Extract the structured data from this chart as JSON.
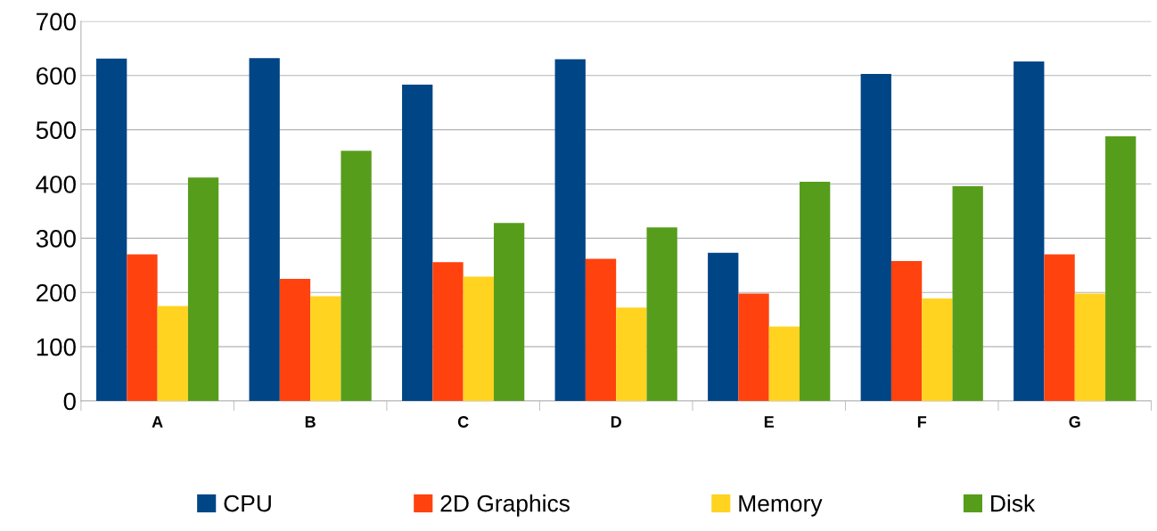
{
  "chart_data": {
    "type": "bar",
    "categories": [
      "A",
      "B",
      "C",
      "D",
      "E",
      "F",
      "G"
    ],
    "series": [
      {
        "name": "CPU",
        "color": "#004586",
        "values": [
          631,
          632,
          583,
          630,
          273,
          603,
          626
        ]
      },
      {
        "name": "2D Graphics",
        "color": "#ff420e",
        "values": [
          270,
          225,
          256,
          262,
          198,
          258,
          270
        ]
      },
      {
        "name": "Memory",
        "color": "#ffd320",
        "values": [
          175,
          193,
          229,
          172,
          137,
          189,
          198
        ]
      },
      {
        "name": "Disk",
        "color": "#579d1c",
        "values": [
          412,
          461,
          328,
          320,
          404,
          396,
          488
        ]
      }
    ],
    "ylim": [
      0,
      700
    ],
    "yticks": [
      0,
      100,
      200,
      300,
      400,
      500,
      600,
      700
    ],
    "grid": "y",
    "legend": "bottom"
  }
}
